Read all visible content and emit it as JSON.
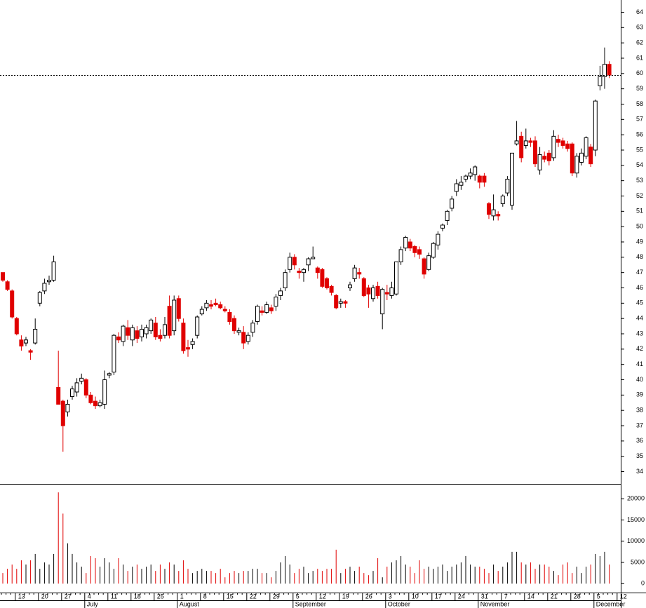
{
  "chart_data": {
    "type": "candlestick",
    "categories": [
      null,
      null,
      null,
      "13",
      null,
      null,
      null,
      null,
      "20",
      null,
      null,
      null,
      null,
      "27",
      null,
      null,
      null,
      null,
      "4",
      null,
      null,
      null,
      null,
      "11",
      null,
      null,
      null,
      null,
      "18",
      null,
      null,
      null,
      null,
      "25",
      null,
      null,
      null,
      null,
      "1",
      null,
      null,
      null,
      null,
      "8",
      null,
      null,
      null,
      null,
      "15",
      null,
      null,
      null,
      null,
      "22",
      null,
      null,
      null,
      null,
      "29",
      null,
      null,
      null,
      null,
      "5",
      null,
      null,
      null,
      null,
      "12",
      null,
      null,
      null,
      null,
      "19",
      null,
      null,
      null,
      null,
      "26",
      null,
      null,
      null,
      null,
      "3",
      null,
      null,
      null,
      null,
      "10",
      null,
      null,
      null,
      null,
      "17",
      null,
      null,
      null,
      null,
      "24",
      null,
      null,
      null,
      null,
      "31",
      null,
      null,
      null,
      null,
      "7",
      null,
      null,
      null,
      null,
      "14",
      null,
      null,
      null,
      null,
      "21",
      null,
      null,
      null,
      null,
      "28",
      null,
      null,
      null,
      null,
      "5",
      null,
      null,
      null,
      null,
      "12"
    ],
    "month_categories": [
      null,
      null,
      null,
      null,
      null,
      null,
      null,
      null,
      null,
      null,
      null,
      null,
      null,
      null,
      null,
      null,
      null,
      null,
      "July",
      null,
      null,
      null,
      null,
      null,
      null,
      null,
      null,
      null,
      null,
      null,
      null,
      null,
      null,
      null,
      null,
      null,
      null,
      null,
      "August",
      null,
      null,
      null,
      null,
      null,
      null,
      null,
      null,
      null,
      null,
      null,
      null,
      null,
      null,
      null,
      null,
      null,
      null,
      null,
      null,
      null,
      null,
      null,
      null,
      "September",
      null,
      null,
      null,
      null,
      null,
      null,
      null,
      null,
      null,
      null,
      null,
      null,
      null,
      null,
      null,
      null,
      null,
      null,
      null,
      "October",
      null,
      null,
      null,
      null,
      null,
      null,
      null,
      null,
      null,
      null,
      null,
      null,
      null,
      null,
      null,
      null,
      null,
      null,
      null,
      "November",
      null,
      null,
      null,
      null,
      null,
      null,
      null,
      null,
      null,
      null,
      null,
      null,
      null,
      null,
      null,
      null,
      null,
      null,
      null,
      null,
      null,
      null,
      null,
      null,
      "December",
      null,
      null,
      null,
      null,
      null
    ],
    "open": [
      47.0,
      46.4,
      45.8,
      44.0,
      42.6,
      42.4,
      41.9,
      42.4,
      45.0,
      45.8,
      46.4,
      46.5,
      39.5,
      38.6,
      37.9,
      38.9,
      39.2,
      39.9,
      40.0,
      39.0,
      38.6,
      38.3,
      38.4,
      40.3,
      40.5,
      42.8,
      42.5,
      43.4,
      42.6,
      43.2,
      42.8,
      43.0,
      43.2,
      43.7,
      42.9,
      42.9,
      44.8,
      43.2,
      45.3,
      43.7,
      42.1,
      42.3,
      42.9,
      44.3,
      44.7,
      44.9,
      45.0,
      44.9,
      44.6,
      44.4,
      44.0,
      43.1,
      43.1,
      42.5,
      43.1,
      43.8,
      44.5,
      44.4,
      44.7,
      44.8,
      45.5,
      46.0,
      47.2,
      48.0,
      47.1,
      47.0,
      47.5,
      47.9,
      47.3,
      47.2,
      46.6,
      46.1,
      45.5,
      45.0,
      45.1,
      46.0,
      46.6,
      47.0,
      46.6,
      46.0,
      45.3,
      46.1,
      44.3,
      45.7,
      45.5,
      45.6,
      47.7,
      48.6,
      49.0,
      48.7,
      48.5,
      47.9,
      47.2,
      48.0,
      48.8,
      49.9,
      50.4,
      51.2,
      52.3,
      52.7,
      53.1,
      53.3,
      53.4,
      53.3,
      53.3,
      51.5,
      50.7,
      50.8,
      51.5,
      52.2,
      51.4,
      55.4,
      55.9,
      55.3,
      55.6,
      55.6,
      53.7,
      54.6,
      54.8,
      54.5,
      55.7,
      55.6,
      55.4,
      55.4,
      53.5,
      54.2,
      54.6,
      55.2,
      55.0,
      59.2,
      59.8,
      60.6,
      null,
      null
    ],
    "high": [
      47.0,
      46.5,
      45.9,
      44.1,
      42.9,
      42.8,
      42.0,
      44.0,
      45.8,
      46.6,
      46.8,
      48.1,
      41.9,
      38.7,
      38.7,
      39.6,
      40.1,
      40.4,
      40.1,
      39.2,
      38.9,
      38.7,
      40.6,
      40.5,
      43.0,
      43.1,
      43.6,
      43.9,
      43.6,
      43.5,
      43.6,
      43.6,
      44.0,
      44.1,
      43.3,
      44.1,
      45.5,
      45.5,
      45.5,
      44.0,
      42.6,
      42.7,
      44.2,
      44.8,
      45.2,
      45.2,
      45.3,
      45.1,
      44.8,
      44.6,
      44.2,
      43.4,
      43.5,
      43.1,
      43.9,
      44.9,
      44.8,
      45.1,
      44.9,
      45.6,
      46.0,
      47.2,
      48.3,
      48.2,
      47.3,
      47.3,
      48.0,
      48.7,
      47.4,
      47.3,
      46.7,
      46.2,
      45.6,
      45.3,
      45.2,
      46.4,
      47.5,
      47.3,
      46.7,
      46.2,
      46.2,
      46.4,
      46.0,
      46.2,
      46.4,
      47.7,
      48.7,
      49.4,
      49.2,
      48.8,
      48.7,
      48.0,
      48.3,
      49.0,
      49.7,
      50.2,
      51.1,
      52.0,
      53.1,
      53.3,
      53.4,
      53.8,
      54.0,
      53.4,
      53.5,
      51.6,
      52.1,
      51.0,
      52.1,
      53.3,
      54.8,
      56.9,
      56.2,
      56.4,
      55.8,
      55.9,
      55.2,
      54.9,
      55.0,
      56.3,
      56.0,
      55.8,
      55.6,
      55.5,
      54.8,
      55.1,
      55.9,
      55.4,
      58.3,
      60.5,
      61.7,
      60.8,
      null,
      null
    ],
    "low": [
      46.4,
      45.8,
      44.0,
      42.9,
      41.9,
      42.2,
      41.3,
      42.3,
      44.8,
      45.6,
      46.2,
      46.4,
      38.4,
      35.3,
      37.6,
      38.7,
      38.9,
      39.7,
      38.8,
      38.4,
      38.1,
      38.2,
      38.1,
      40.1,
      40.3,
      42.4,
      42.2,
      42.6,
      42.2,
      42.4,
      42.5,
      42.7,
      43.0,
      42.6,
      42.5,
      42.7,
      42.7,
      42.9,
      43.8,
      41.7,
      41.5,
      42.0,
      42.7,
      44.2,
      44.5,
      44.6,
      44.8,
      44.6,
      44.4,
      43.6,
      43.0,
      42.9,
      42.0,
      42.3,
      42.8,
      43.6,
      44.2,
      44.3,
      44.3,
      44.5,
      45.2,
      45.8,
      47.0,
      47.2,
      46.6,
      46.4,
      47.1,
      47.9,
      46.6,
      46.0,
      45.9,
      45.5,
      44.6,
      44.7,
      44.7,
      45.8,
      46.4,
      46.6,
      45.4,
      44.7,
      45.1,
      45.3,
      43.3,
      45.2,
      45.3,
      45.5,
      47.5,
      48.4,
      48.4,
      48.0,
      47.9,
      46.6,
      47.1,
      47.9,
      48.5,
      49.7,
      50.1,
      51.0,
      52.0,
      52.4,
      52.9,
      53.1,
      53.0,
      52.5,
      52.6,
      50.5,
      50.4,
      50.4,
      51.3,
      52.0,
      51.1,
      55.3,
      54.2,
      55.1,
      55.2,
      53.9,
      53.4,
      54.2,
      54.0,
      54.3,
      55.2,
      55.1,
      54.9,
      53.3,
      53.2,
      54.0,
      54.4,
      53.9,
      54.6,
      58.9,
      59.0,
      59.7,
      null,
      null
    ],
    "close": [
      46.5,
      45.9,
      44.1,
      43.0,
      42.2,
      42.6,
      41.8,
      43.3,
      45.7,
      46.3,
      46.5,
      47.7,
      38.4,
      37.0,
      38.4,
      39.4,
      39.8,
      40.1,
      39.0,
      38.5,
      38.3,
      38.5,
      40.0,
      40.4,
      42.9,
      42.6,
      43.5,
      42.9,
      43.4,
      42.7,
      43.3,
      43.4,
      43.9,
      42.8,
      42.7,
      43.6,
      42.9,
      45.2,
      44.0,
      41.9,
      42.0,
      42.5,
      44.1,
      44.6,
      45.0,
      44.8,
      44.9,
      44.7,
      44.5,
      43.8,
      43.2,
      43.2,
      42.4,
      42.9,
      43.7,
      44.8,
      44.4,
      44.9,
      44.5,
      45.4,
      45.8,
      47.0,
      48.0,
      47.5,
      47.0,
      47.2,
      47.9,
      48.0,
      47.0,
      46.1,
      46.0,
      45.7,
      44.7,
      45.1,
      45.0,
      46.2,
      47.3,
      46.9,
      45.5,
      45.6,
      46.0,
      45.5,
      45.9,
      45.6,
      46.0,
      47.7,
      48.5,
      49.3,
      48.6,
      48.3,
      48.2,
      46.9,
      48.1,
      48.9,
      49.5,
      50.1,
      51.0,
      51.8,
      52.8,
      52.9,
      53.3,
      53.5,
      53.9,
      52.9,
      52.9,
      50.8,
      51.1,
      50.7,
      52.0,
      53.1,
      54.8,
      55.6,
      54.5,
      55.6,
      55.5,
      54.1,
      54.7,
      54.4,
      54.3,
      55.9,
      55.5,
      55.3,
      55.1,
      53.5,
      54.6,
      54.8,
      55.8,
      54.1,
      58.2,
      59.8,
      60.6,
      59.9,
      null,
      null
    ],
    "volume": [
      2500,
      3500,
      4500,
      3500,
      5500,
      4500,
      5500,
      7000,
      3500,
      5000,
      4500,
      7000,
      21500,
      16500,
      9500,
      7000,
      5000,
      4000,
      2500,
      6500,
      6000,
      4000,
      6000,
      5000,
      3500,
      6000,
      4500,
      3000,
      4000,
      4500,
      3500,
      4000,
      4500,
      3000,
      4500,
      3500,
      5000,
      4500,
      3000,
      5500,
      3500,
      2500,
      3000,
      3500,
      3000,
      3000,
      2500,
      3500,
      1500,
      2500,
      3000,
      2500,
      3000,
      3000,
      3500,
      3500,
      2500,
      2500,
      1500,
      3000,
      5000,
      6500,
      4500,
      2500,
      3500,
      4000,
      2500,
      3000,
      3500,
      3000,
      3500,
      3500,
      8000,
      2500,
      3500,
      4000,
      3000,
      4000,
      2500,
      2000,
      3000,
      6000,
      1500,
      4000,
      5000,
      5500,
      6500,
      4500,
      4000,
      2500,
      5500,
      3500,
      4000,
      3500,
      4000,
      4500,
      3000,
      4000,
      4500,
      5000,
      6500,
      4500,
      4000,
      4000,
      3500,
      2500,
      4500,
      3000,
      4000,
      5000,
      7500,
      7500,
      5000,
      4500,
      5000,
      3500,
      4500,
      4500,
      4000,
      3000,
      2000,
      4500,
      5000,
      2500,
      4000,
      2500,
      4000,
      4500,
      7000,
      6500,
      7500,
      4500,
      null,
      null
    ],
    "up_color": "#000000",
    "down_color": "#e00000",
    "ylim": [
      33.2,
      64.8
    ],
    "yticks": [
      34,
      35,
      36,
      37,
      38,
      39,
      40,
      41,
      42,
      43,
      44,
      45,
      46,
      47,
      48,
      49,
      50,
      51,
      52,
      53,
      54,
      55,
      56,
      57,
      58,
      59,
      60,
      61,
      62,
      63,
      64
    ],
    "volume_ylim": [
      -2100,
      23500
    ],
    "volume_yticks": [
      0,
      5000,
      10000,
      15000,
      20000
    ]
  }
}
